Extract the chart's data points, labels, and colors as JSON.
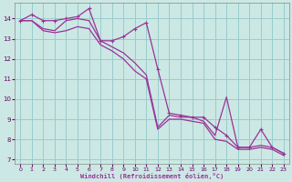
{
  "xlabel": "Windchill (Refroidissement éolien,°C)",
  "bg_color": "#cce8e4",
  "grid_color": "#99cccc",
  "line_color": "#993399",
  "xlim": [
    -0.5,
    23.5
  ],
  "ylim": [
    6.8,
    14.8
  ],
  "xticks": [
    0,
    1,
    2,
    3,
    4,
    5,
    6,
    7,
    8,
    9,
    10,
    11,
    12,
    13,
    14,
    15,
    16,
    17,
    18,
    19,
    20,
    21,
    22,
    23
  ],
  "yticks": [
    7,
    8,
    9,
    10,
    11,
    12,
    13,
    14
  ],
  "series": [
    [
      13.9,
      14.2,
      13.9,
      13.9,
      14.0,
      14.1,
      14.5,
      12.9,
      12.9,
      13.1,
      13.5,
      13.8,
      11.5,
      9.3,
      9.2,
      9.1,
      9.1,
      8.6,
      8.2,
      7.6,
      7.6,
      8.5,
      7.6,
      7.3
    ],
    [
      13.9,
      13.9,
      13.5,
      13.4,
      13.9,
      14.0,
      13.9,
      12.9,
      12.6,
      12.3,
      11.8,
      11.2,
      8.6,
      9.2,
      9.1,
      9.1,
      8.9,
      8.2,
      10.1,
      7.6,
      7.6,
      7.7,
      7.6,
      7.3
    ],
    [
      13.9,
      13.9,
      13.4,
      13.3,
      13.4,
      13.6,
      13.5,
      12.7,
      12.4,
      12.0,
      11.4,
      11.0,
      8.5,
      9.0,
      9.0,
      8.9,
      8.8,
      8.0,
      7.9,
      7.5,
      7.5,
      7.6,
      7.5,
      7.2
    ]
  ],
  "markers_series": [
    0
  ],
  "marker_x": [
    0,
    1,
    2,
    3,
    4,
    5,
    6,
    7,
    8,
    9,
    10,
    11,
    12,
    13,
    14,
    15,
    16,
    17,
    18,
    19,
    20,
    21,
    22,
    23
  ]
}
